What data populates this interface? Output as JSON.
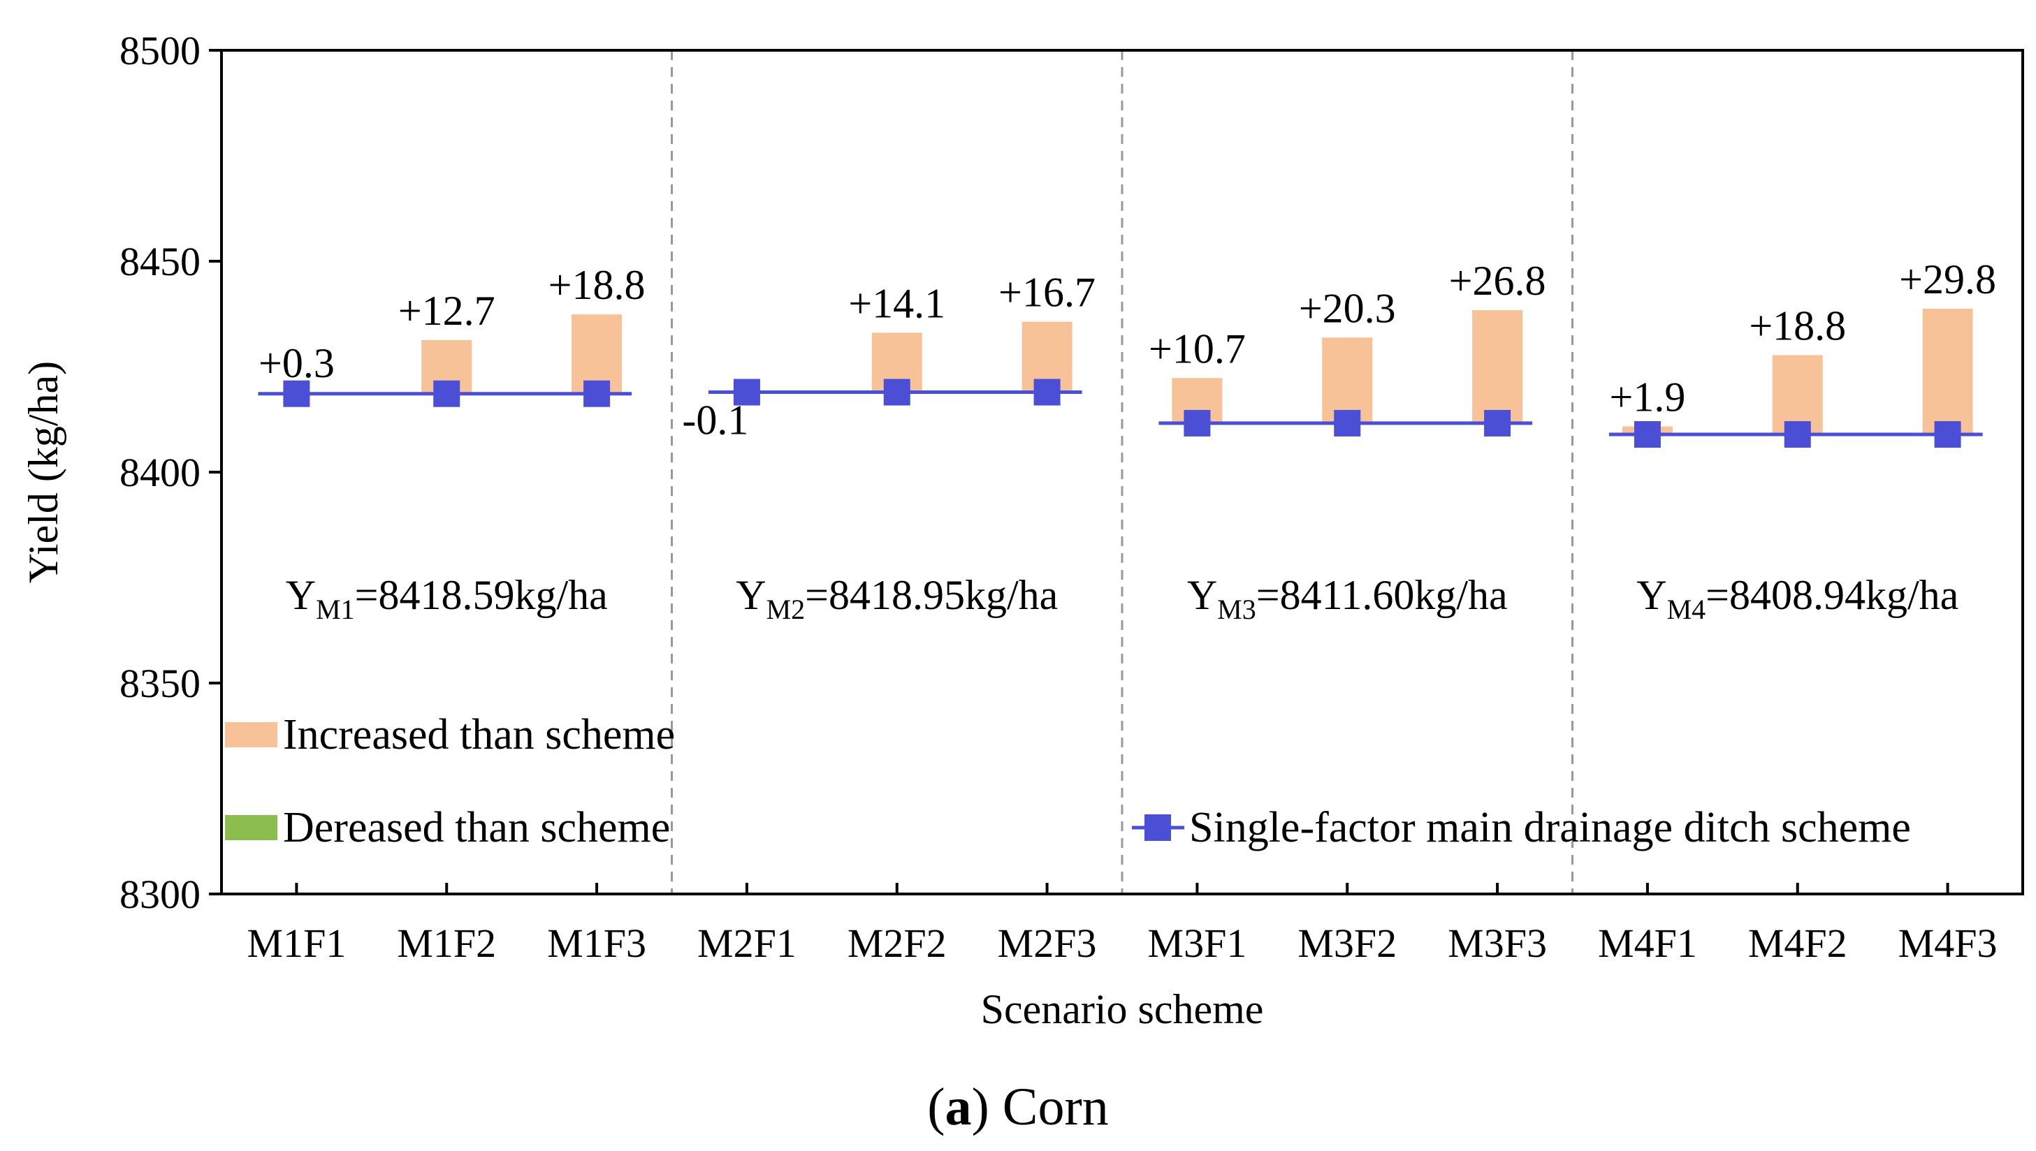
{
  "chart_data": {
    "type": "bar",
    "subtype": "floating-bar-with-baseline-line",
    "caption": {
      "open": "(",
      "letter": "a",
      "rest": ") Corn"
    },
    "xlabel": "Scenario scheme",
    "ylabel": "Yield (kg/ha)",
    "ylim": [
      8300,
      8500
    ],
    "yticks": [
      "8300",
      "8350",
      "8400",
      "8450",
      "8500"
    ],
    "categories": [
      "M1F1",
      "M1F2",
      "M1F3",
      "M2F1",
      "M2F2",
      "M2F3",
      "M3F1",
      "M3F2",
      "M3F3",
      "M4F1",
      "M4F2",
      "M4F3"
    ],
    "baseline": [
      8418.59,
      8418.59,
      8418.59,
      8418.95,
      8418.95,
      8418.95,
      8411.6,
      8411.6,
      8411.6,
      8408.94,
      8408.94,
      8408.94
    ],
    "deltas": [
      0.3,
      12.7,
      18.8,
      -0.1,
      14.1,
      16.7,
      10.7,
      20.3,
      26.8,
      1.9,
      18.8,
      29.8
    ],
    "delta_labels": [
      "+0.3",
      "+12.7",
      "+18.8",
      "-0.1",
      "+14.1",
      "+16.7",
      "+10.7",
      "+20.3",
      "+26.8",
      "+1.9",
      "+18.8",
      "+29.8"
    ],
    "groups": [
      {
        "main": "Y",
        "sub": "M1",
        "rest": "=8418.59kg/ha"
      },
      {
        "main": "Y",
        "sub": "M2",
        "rest": "=8418.95kg/ha"
      },
      {
        "main": "Y",
        "sub": "M3",
        "rest": "=8411.60kg/ha"
      },
      {
        "main": "Y",
        "sub": "M4",
        "rest": "=8408.94kg/ha"
      }
    ],
    "legend": {
      "increased": "Increased than scheme",
      "decreased": "Dereased than scheme",
      "line": "Single-factor main drainage ditch scheme"
    },
    "colors": {
      "increased": "#f8c298",
      "decreased": "#8cbd4f",
      "line": "#4a4fd6",
      "axis": "#000000",
      "divider": "#999999"
    }
  }
}
